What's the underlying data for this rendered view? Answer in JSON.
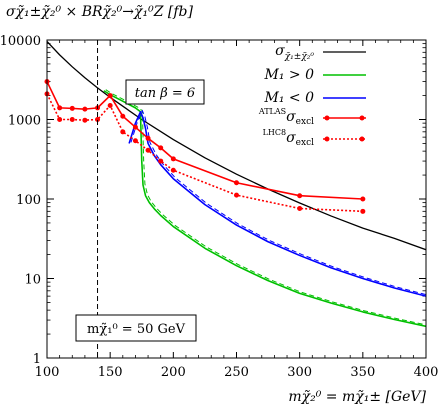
{
  "chart_data": {
    "type": "line",
    "ylabel": "σχ̃₁±χ̃₂⁰ × BRχ̃₂⁰→χ̃₁⁰Z [fb]",
    "xlabel": "mχ̃₂⁰ = mχ̃₁± [GeV]",
    "xlim": [
      100,
      400
    ],
    "ylim": [
      1,
      10000
    ],
    "yscale": "log",
    "x_ticks": [
      "100",
      "150",
      "200",
      "250",
      "300",
      "350",
      "400"
    ],
    "y_ticks": [
      "1",
      "10",
      "100",
      "1000",
      "10000"
    ],
    "annotations": {
      "tan_beta": "tan β = 6",
      "m_chi1": "mχ̃₁⁰ = 50 GeV"
    },
    "vline_x": 140,
    "legend_position": "top-right",
    "series": [
      {
        "name": "σχ̃₁±χ̃₂⁰",
        "color": "#000000",
        "style": "solid",
        "x": [
          100,
          110,
          120,
          130,
          140,
          150,
          160,
          175,
          200,
          225,
          250,
          275,
          300,
          325,
          350,
          375,
          400
        ],
        "y": [
          9600,
          6500,
          4600,
          3350,
          2500,
          1900,
          1470,
          1000,
          560,
          330,
          205,
          133,
          89,
          61,
          43,
          32,
          23
        ]
      },
      {
        "name": "M₁ > 0",
        "color": "#00c000",
        "style": "solid",
        "x": [
          145,
          150,
          160,
          170,
          174,
          175,
          176,
          178,
          181,
          185,
          190,
          200,
          225,
          250,
          275,
          300,
          325,
          350,
          375,
          400
        ],
        "y": [
          2300,
          2050,
          1700,
          1400,
          1250,
          300,
          150,
          110,
          90,
          75,
          62,
          45,
          24,
          14.5,
          9.4,
          6.5,
          4.9,
          3.8,
          3.05,
          2.5
        ]
      },
      {
        "name": "M₁ < 0",
        "color": "#0000ff",
        "style": "solid",
        "x": [
          165,
          170,
          174,
          176,
          178,
          180,
          185,
          190,
          200,
          225,
          250,
          275,
          300,
          325,
          350,
          375,
          400
        ],
        "y": [
          500,
          900,
          1250,
          1050,
          770,
          500,
          350,
          270,
          180,
          85,
          47,
          29,
          19.5,
          13.6,
          10.0,
          7.6,
          6.0
        ]
      },
      {
        "name": "ATLAS σexcl",
        "color": "#ff0000",
        "style": "solid",
        "x": [
          100,
          110,
          120,
          130,
          140,
          150,
          160,
          170,
          180,
          190,
          200,
          250,
          300,
          350
        ],
        "y": [
          3000,
          1400,
          1380,
          1350,
          1400,
          2000,
          1100,
          800,
          580,
          440,
          320,
          160,
          110,
          100
        ]
      },
      {
        "name": "LHC8 σexcl",
        "color": "#ff0000",
        "style": "dotted",
        "x": [
          100,
          110,
          120,
          130,
          140,
          150,
          160,
          170,
          180,
          190,
          200,
          250,
          300,
          350
        ],
        "y": [
          2100,
          1000,
          1000,
          980,
          1000,
          1500,
          700,
          540,
          410,
          300,
          230,
          112,
          76,
          70
        ]
      }
    ],
    "legend_labels": {
      "sigma": "σ",
      "sigma_sub": "χ̃₁±χ̃₂⁰",
      "m1_pos": "M₁ > 0",
      "m1_neg": "M₁ < 0",
      "atlas_sup": "ATLAS",
      "lhc8_sup": "LHC8",
      "excl_sigma": "σ",
      "excl_sub": "excl"
    }
  }
}
